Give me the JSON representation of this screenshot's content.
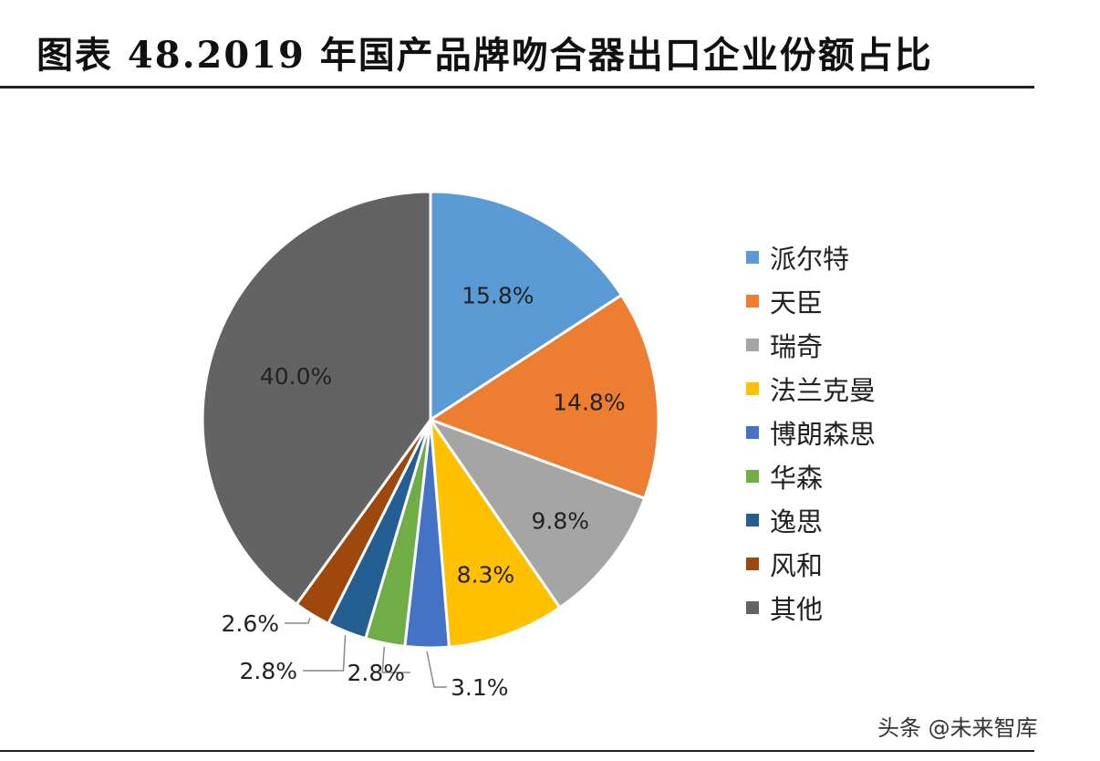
{
  "title": "图表 48.2019 年国产品牌吻合器出口企业份额占比",
  "watermark": "头条 @未来智库",
  "chart_data": {
    "type": "pie",
    "title": "图表 48.2019 年国产品牌吻合器出口企业份额占比",
    "unit": "%",
    "legend_position": "right",
    "slices": [
      {
        "name": "派尔特",
        "value": 15.8,
        "label": "15.8%",
        "color": "#5b9bd5"
      },
      {
        "name": "天臣",
        "value": 14.8,
        "label": "14.8%",
        "color": "#ed7d31"
      },
      {
        "name": "瑞奇",
        "value": 9.8,
        "label": "9.8%",
        "color": "#a5a5a5"
      },
      {
        "name": "法兰克曼",
        "value": 8.3,
        "label": "8.3%",
        "color": "#ffc000"
      },
      {
        "name": "博朗森思",
        "value": 3.1,
        "label": "3.1%",
        "color": "#4472c4"
      },
      {
        "name": "华森",
        "value": 2.8,
        "label": "2.8%",
        "color": "#70ad47"
      },
      {
        "name": "逸思",
        "value": 2.8,
        "label": "2.8%",
        "color": "#255e91"
      },
      {
        "name": "风和",
        "value": 2.6,
        "label": "2.6%",
        "color": "#9e480e"
      },
      {
        "name": "其他",
        "value": 40.0,
        "label": "40.0%",
        "color": "#636363"
      }
    ]
  }
}
